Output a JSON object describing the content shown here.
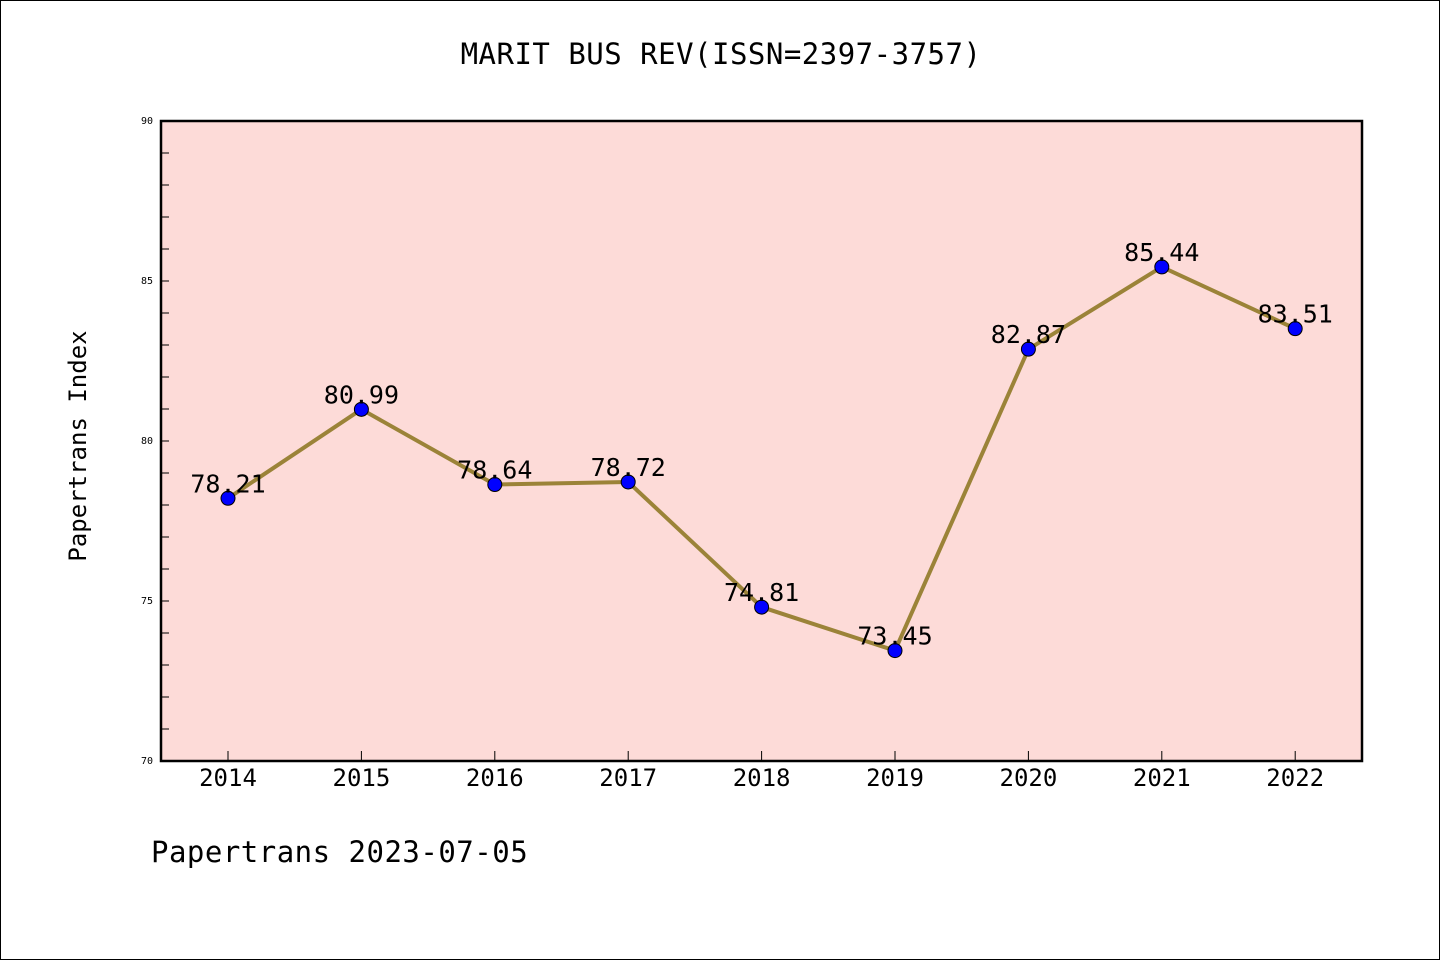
{
  "title": "MARIT BUS REV(ISSN=2397-3757)",
  "footer": "Papertrans 2023-07-05",
  "chart_data": {
    "type": "line",
    "categories": [
      "2014",
      "2015",
      "2016",
      "2017",
      "2018",
      "2019",
      "2020",
      "2021",
      "2022"
    ],
    "values": [
      78.21,
      80.99,
      78.64,
      78.72,
      74.81,
      73.45,
      82.87,
      85.44,
      83.51
    ],
    "data_labels": [
      "78.21",
      "80.99",
      "78.64",
      "78.72",
      "74.81",
      "73.45",
      "82.87",
      "85.44",
      "83.51"
    ],
    "ylabel": "Papertrans Index",
    "xlabel": "",
    "ylim": [
      70,
      90
    ],
    "yticks": [
      70,
      75,
      80,
      85,
      90
    ],
    "grid": false,
    "legend": false,
    "colors": {
      "plot_background": "#fddbd8",
      "line": "#9b8338",
      "marker": "#0000ff",
      "frame": "#000000"
    }
  }
}
